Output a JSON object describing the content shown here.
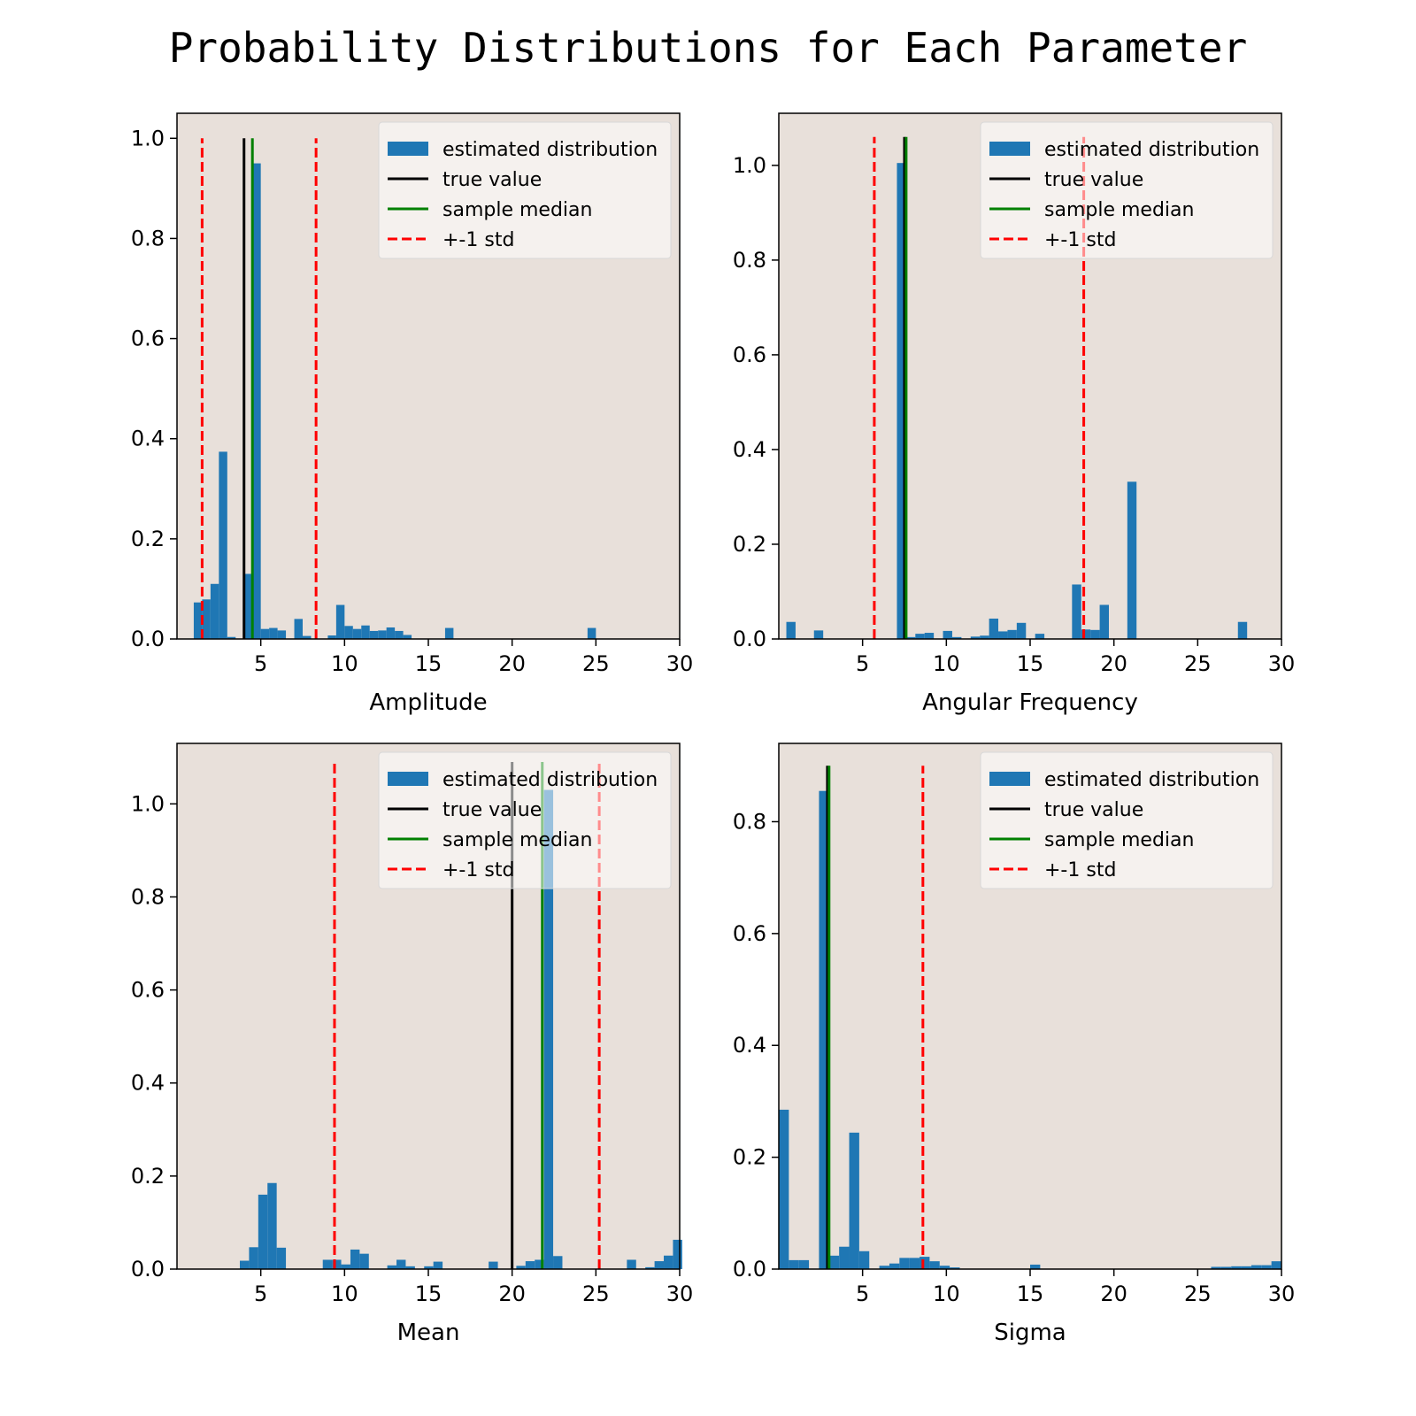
{
  "figure": {
    "title": "Probability Distributions for Each Parameter",
    "background": "#ffffff",
    "axes_facecolor": "#e8e0da",
    "colors": {
      "histogram": "#1f77b4",
      "true_value": "#000000",
      "median": "#008000",
      "std": "#ff0000"
    }
  },
  "chart_data": [
    {
      "type": "bar",
      "xlabel": "Amplitude",
      "ylabel": "",
      "xlim": [
        0,
        30
      ],
      "ylim": [
        0,
        1.05
      ],
      "xticks": [
        "5",
        "10",
        "15",
        "20",
        "25",
        "30"
      ],
      "yticks": [
        "0.0",
        "0.2",
        "0.4",
        "0.6",
        "0.8",
        "1.0"
      ],
      "legend": {
        "position": "upper right",
        "entries": [
          "estimated distribution",
          "true value",
          "sample median",
          "+-1 std"
        ]
      },
      "bin_width": 0.5,
      "bins": [
        [
          1.0,
          0.073
        ],
        [
          1.5,
          0.079
        ],
        [
          2.0,
          0.11
        ],
        [
          2.5,
          0.374
        ],
        [
          3.0,
          0.004
        ],
        [
          4.0,
          0.13
        ],
        [
          4.5,
          0.95
        ],
        [
          5.0,
          0.02
        ],
        [
          5.5,
          0.022
        ],
        [
          6.0,
          0.017
        ],
        [
          6.5,
          0.0
        ],
        [
          7.0,
          0.04
        ],
        [
          7.5,
          0.006
        ],
        [
          8.5,
          0.0
        ],
        [
          9.0,
          0.007
        ],
        [
          9.5,
          0.068
        ],
        [
          10.0,
          0.026
        ],
        [
          10.5,
          0.02
        ],
        [
          11.0,
          0.027
        ],
        [
          11.5,
          0.016
        ],
        [
          12.0,
          0.017
        ],
        [
          12.5,
          0.023
        ],
        [
          13.0,
          0.016
        ],
        [
          13.5,
          0.008
        ],
        [
          16.0,
          0.022
        ],
        [
          24.5,
          0.022
        ]
      ],
      "true_value": 4.0,
      "sample_median": 4.5,
      "std_lines": [
        1.5,
        8.3
      ],
      "line_top": 1.0
    },
    {
      "type": "bar",
      "xlabel": "Angular Frequency",
      "ylabel": "",
      "xlim": [
        0,
        30
      ],
      "ylim": [
        0,
        1.11
      ],
      "xticks": [
        "5",
        "10",
        "15",
        "20",
        "25",
        "30"
      ],
      "yticks": [
        "0.0",
        "0.2",
        "0.4",
        "0.6",
        "0.8",
        "1.0"
      ],
      "legend": {
        "position": "upper right",
        "entries": [
          "estimated distribution",
          "true value",
          "sample median",
          "+-1 std"
        ]
      },
      "bin_width": 0.55,
      "bins": [
        [
          0.45,
          0.036
        ],
        [
          2.1,
          0.018
        ],
        [
          7.05,
          1.005
        ],
        [
          7.6,
          0.004
        ],
        [
          8.15,
          0.011
        ],
        [
          8.7,
          0.013
        ],
        [
          9.25,
          0.0
        ],
        [
          9.8,
          0.017
        ],
        [
          10.35,
          0.004
        ],
        [
          11.45,
          0.005
        ],
        [
          12.0,
          0.007
        ],
        [
          12.55,
          0.043
        ],
        [
          13.1,
          0.016
        ],
        [
          13.65,
          0.019
        ],
        [
          14.2,
          0.034
        ],
        [
          15.3,
          0.011
        ],
        [
          17.5,
          0.115
        ],
        [
          18.05,
          0.02
        ],
        [
          18.6,
          0.019
        ],
        [
          19.15,
          0.072
        ],
        [
          20.8,
          0.332
        ],
        [
          27.4,
          0.036
        ]
      ],
      "true_value": 7.5,
      "sample_median": 7.6,
      "std_lines": [
        5.7,
        18.2
      ],
      "line_top": 1.06
    },
    {
      "type": "bar",
      "xlabel": "Mean",
      "ylabel": "",
      "xlim": [
        0,
        30
      ],
      "ylim": [
        0,
        1.13
      ],
      "xticks": [
        "5",
        "10",
        "15",
        "20",
        "25",
        "30"
      ],
      "yticks": [
        "0.0",
        "0.2",
        "0.4",
        "0.6",
        "0.8",
        "1.0"
      ],
      "legend": {
        "position": "upper right",
        "entries": [
          "estimated distribution",
          "true value",
          "sample median",
          "+-1 std"
        ]
      },
      "bin_width": 0.55,
      "bins": [
        [
          3.75,
          0.018
        ],
        [
          4.3,
          0.047
        ],
        [
          4.85,
          0.16
        ],
        [
          5.4,
          0.185
        ],
        [
          5.95,
          0.046
        ],
        [
          8.7,
          0.02
        ],
        [
          9.25,
          0.02
        ],
        [
          9.8,
          0.01
        ],
        [
          10.35,
          0.042
        ],
        [
          10.9,
          0.033
        ],
        [
          12.55,
          0.008
        ],
        [
          13.1,
          0.02
        ],
        [
          13.65,
          0.006
        ],
        [
          14.75,
          0.006
        ],
        [
          15.3,
          0.016
        ],
        [
          18.6,
          0.016
        ],
        [
          20.25,
          0.007
        ],
        [
          20.8,
          0.017
        ],
        [
          21.35,
          0.02
        ],
        [
          21.9,
          1.03
        ],
        [
          22.45,
          0.028
        ],
        [
          26.85,
          0.02
        ],
        [
          27.95,
          0.004
        ],
        [
          28.5,
          0.017
        ],
        [
          29.05,
          0.029
        ],
        [
          29.6,
          0.063
        ]
      ],
      "true_value": 20.0,
      "sample_median": 21.8,
      "std_lines": [
        9.4,
        25.2
      ],
      "line_top": 1.09
    },
    {
      "type": "bar",
      "xlabel": "Sigma",
      "ylabel": "",
      "xlim": [
        0,
        30
      ],
      "ylim": [
        0,
        0.94
      ],
      "xticks": [
        "5",
        "10",
        "15",
        "20",
        "25",
        "30"
      ],
      "yticks": [
        "0.0",
        "0.2",
        "0.4",
        "0.6",
        "0.8"
      ],
      "legend": {
        "position": "upper right",
        "entries": [
          "estimated distribution",
          "true value",
          "sample median",
          "+-1 std"
        ]
      },
      "bin_width": 0.6,
      "bins": [
        [
          0.0,
          0.285
        ],
        [
          0.6,
          0.016
        ],
        [
          1.2,
          0.016
        ],
        [
          2.4,
          0.855
        ],
        [
          3.0,
          0.024
        ],
        [
          3.6,
          0.04
        ],
        [
          4.2,
          0.244
        ],
        [
          4.8,
          0.032
        ],
        [
          6.0,
          0.006
        ],
        [
          6.6,
          0.01
        ],
        [
          7.2,
          0.02
        ],
        [
          7.8,
          0.02
        ],
        [
          8.4,
          0.022
        ],
        [
          9.0,
          0.014
        ],
        [
          9.6,
          0.006
        ],
        [
          10.2,
          0.003
        ],
        [
          15.0,
          0.008
        ],
        [
          25.8,
          0.004
        ],
        [
          26.4,
          0.004
        ],
        [
          27.0,
          0.005
        ],
        [
          27.6,
          0.005
        ],
        [
          28.2,
          0.007
        ],
        [
          28.8,
          0.007
        ],
        [
          29.4,
          0.014
        ]
      ],
      "true_value": 2.9,
      "sample_median": 3.0,
      "std_lines": [
        8.6
      ],
      "line_top": 0.9
    }
  ]
}
